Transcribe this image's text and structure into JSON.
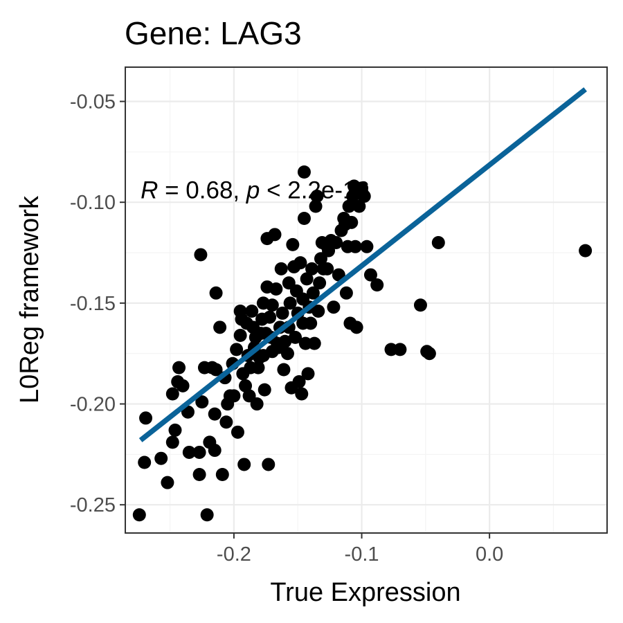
{
  "chart_data": {
    "type": "scatter",
    "title": "Gene: LAG3",
    "xlabel": "True Expression",
    "ylabel": "L0Reg framework",
    "xlim": [
      -0.285,
      0.092
    ],
    "ylim": [
      -0.264,
      -0.033
    ],
    "x_ticks": [
      -0.2,
      -0.1,
      0.0
    ],
    "x_tick_labels": [
      "-0.2",
      "-0.1",
      "0.0"
    ],
    "y_ticks": [
      -0.25,
      -0.2,
      -0.15,
      -0.1,
      -0.05
    ],
    "y_tick_labels": [
      "-0.25",
      "-0.20",
      "-0.15",
      "-0.10",
      "-0.05"
    ],
    "grid": true,
    "annotation": {
      "r_symbol": "R",
      "r_text": " = 0.68, ",
      "p_symbol": "p",
      "p_text": " < 2.2e-16",
      "x": -0.273,
      "y": -0.098
    },
    "regression_line": {
      "x": [
        -0.273,
        0.075
      ],
      "y": [
        -0.218,
        -0.044
      ],
      "color": "#0a6399"
    },
    "point_color": "#000000",
    "points": [
      [
        -0.274,
        -0.255
      ],
      [
        -0.27,
        -0.229
      ],
      [
        -0.269,
        -0.207
      ],
      [
        -0.257,
        -0.227
      ],
      [
        -0.252,
        -0.239
      ],
      [
        -0.248,
        -0.219
      ],
      [
        -0.248,
        -0.195
      ],
      [
        -0.246,
        -0.213
      ],
      [
        -0.244,
        -0.189
      ],
      [
        -0.243,
        -0.182
      ],
      [
        -0.24,
        -0.191
      ],
      [
        -0.236,
        -0.204
      ],
      [
        -0.235,
        -0.224
      ],
      [
        -0.227,
        -0.235
      ],
      [
        -0.227,
        -0.224
      ],
      [
        -0.226,
        -0.126
      ],
      [
        -0.225,
        -0.199
      ],
      [
        -0.223,
        -0.182
      ],
      [
        -0.221,
        -0.255
      ],
      [
        -0.219,
        -0.219
      ],
      [
        -0.217,
        -0.182
      ],
      [
        -0.215,
        -0.205
      ],
      [
        -0.215,
        -0.223
      ],
      [
        -0.214,
        -0.145
      ],
      [
        -0.214,
        -0.183
      ],
      [
        -0.211,
        -0.162
      ],
      [
        -0.209,
        -0.235
      ],
      [
        -0.207,
        -0.187
      ],
      [
        -0.206,
        -0.209
      ],
      [
        -0.205,
        -0.2
      ],
      [
        -0.203,
        -0.196
      ],
      [
        -0.201,
        -0.18
      ],
      [
        -0.2,
        -0.196
      ],
      [
        -0.198,
        -0.173
      ],
      [
        -0.197,
        -0.214
      ],
      [
        -0.195,
        -0.154
      ],
      [
        -0.195,
        -0.166
      ],
      [
        -0.194,
        -0.158
      ],
      [
        -0.193,
        -0.185
      ],
      [
        -0.192,
        -0.23
      ],
      [
        -0.191,
        -0.191
      ],
      [
        -0.19,
        -0.16
      ],
      [
        -0.189,
        -0.176
      ],
      [
        -0.188,
        -0.196
      ],
      [
        -0.187,
        -0.182
      ],
      [
        -0.186,
        -0.154
      ],
      [
        -0.185,
        -0.162
      ],
      [
        -0.184,
        -0.172
      ],
      [
        -0.183,
        -0.167
      ],
      [
        -0.182,
        -0.2
      ],
      [
        -0.181,
        -0.182
      ],
      [
        -0.18,
        -0.177
      ],
      [
        -0.179,
        -0.165
      ],
      [
        -0.178,
        -0.158
      ],
      [
        -0.177,
        -0.15
      ],
      [
        -0.177,
        -0.176
      ],
      [
        -0.176,
        -0.193
      ],
      [
        -0.175,
        -0.165
      ],
      [
        -0.174,
        -0.118
      ],
      [
        -0.174,
        -0.142
      ],
      [
        -0.173,
        -0.23
      ],
      [
        -0.172,
        -0.157
      ],
      [
        -0.171,
        -0.167
      ],
      [
        -0.17,
        -0.174
      ],
      [
        -0.17,
        -0.151
      ],
      [
        -0.168,
        -0.116
      ],
      [
        -0.167,
        -0.143
      ],
      [
        -0.166,
        -0.17
      ],
      [
        -0.165,
        -0.172
      ],
      [
        -0.164,
        -0.162
      ],
      [
        -0.163,
        -0.133
      ],
      [
        -0.162,
        -0.155
      ],
      [
        -0.161,
        -0.183
      ],
      [
        -0.16,
        -0.169
      ],
      [
        -0.158,
        -0.175
      ],
      [
        -0.157,
        -0.14
      ],
      [
        -0.157,
        -0.162
      ],
      [
        -0.156,
        -0.15
      ],
      [
        -0.155,
        -0.192
      ],
      [
        -0.154,
        -0.121
      ],
      [
        -0.153,
        -0.132
      ],
      [
        -0.152,
        -0.167
      ],
      [
        -0.151,
        -0.144
      ],
      [
        -0.15,
        -0.155
      ],
      [
        -0.149,
        -0.189
      ],
      [
        -0.148,
        -0.13
      ],
      [
        -0.147,
        -0.195
      ],
      [
        -0.146,
        -0.16
      ],
      [
        -0.146,
        -0.148
      ],
      [
        -0.145,
        -0.108
      ],
      [
        -0.145,
        -0.085
      ],
      [
        -0.144,
        -0.17
      ],
      [
        -0.143,
        -0.138
      ],
      [
        -0.142,
        -0.185
      ],
      [
        -0.141,
        -0.152
      ],
      [
        -0.14,
        -0.16
      ],
      [
        -0.139,
        -0.133
      ],
      [
        -0.138,
        -0.145
      ],
      [
        -0.137,
        -0.17
      ],
      [
        -0.136,
        -0.102
      ],
      [
        -0.135,
        -0.097
      ],
      [
        -0.134,
        -0.154
      ],
      [
        -0.133,
        -0.14
      ],
      [
        -0.132,
        -0.128
      ],
      [
        -0.131,
        -0.12
      ],
      [
        -0.13,
        -0.133
      ],
      [
        -0.128,
        -0.121
      ],
      [
        -0.127,
        -0.133
      ],
      [
        -0.126,
        -0.124
      ],
      [
        -0.124,
        -0.119
      ],
      [
        -0.122,
        -0.152
      ],
      [
        -0.12,
        -0.12
      ],
      [
        -0.118,
        -0.136
      ],
      [
        -0.116,
        -0.114
      ],
      [
        -0.114,
        -0.108
      ],
      [
        -0.113,
        -0.111
      ],
      [
        -0.112,
        -0.145
      ],
      [
        -0.111,
        -0.122
      ],
      [
        -0.11,
        -0.102
      ],
      [
        -0.109,
        -0.16
      ],
      [
        -0.108,
        -0.11
      ],
      [
        -0.107,
        -0.097
      ],
      [
        -0.106,
        -0.092
      ],
      [
        -0.105,
        -0.122
      ],
      [
        -0.104,
        -0.162
      ],
      [
        -0.103,
        -0.095
      ],
      [
        -0.102,
        -0.102
      ],
      [
        -0.1,
        -0.093
      ],
      [
        -0.098,
        -0.097
      ],
      [
        -0.096,
        -0.122
      ],
      [
        -0.093,
        -0.136
      ],
      [
        -0.088,
        -0.141
      ],
      [
        -0.077,
        -0.173
      ],
      [
        -0.07,
        -0.173
      ],
      [
        -0.054,
        -0.151
      ],
      [
        -0.049,
        -0.174
      ],
      [
        -0.047,
        -0.175
      ],
      [
        -0.04,
        -0.12
      ],
      [
        0.075,
        -0.124
      ]
    ]
  }
}
